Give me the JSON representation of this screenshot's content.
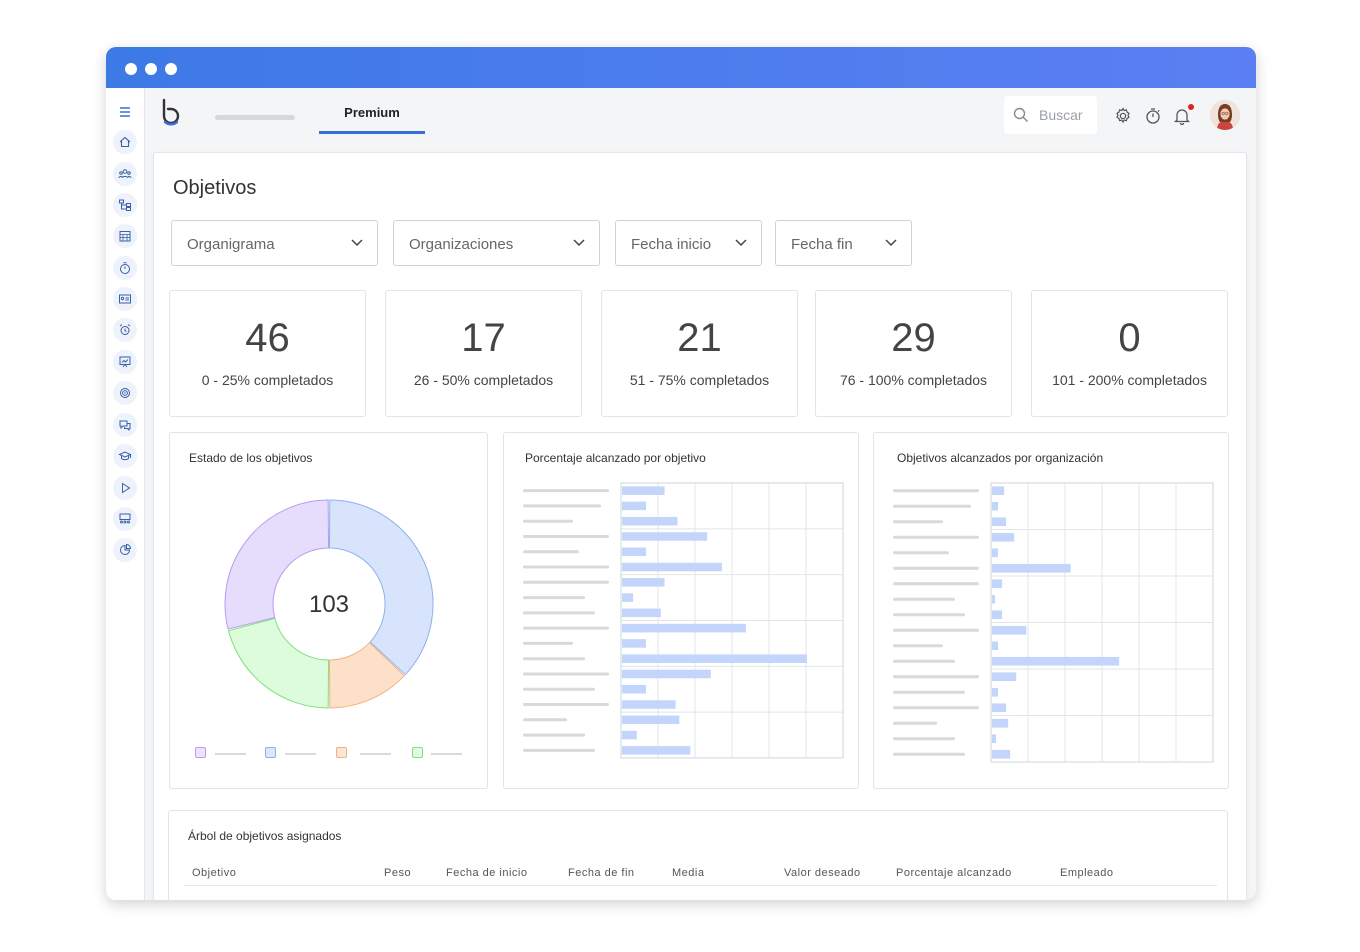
{
  "topbar": {
    "tab_active": "Premium",
    "search_placeholder": "Buscar"
  },
  "page": {
    "title": "Objetivos"
  },
  "filters": [
    {
      "label": "Organigrama"
    },
    {
      "label": "Organizaciones"
    },
    {
      "label": "Fecha inicio"
    },
    {
      "label": "Fecha fin"
    }
  ],
  "stats": [
    {
      "value": "46",
      "label": "0 - 25% completados"
    },
    {
      "value": "17",
      "label": "26 - 50% completados"
    },
    {
      "value": "21",
      "label": "51 - 75% completados"
    },
    {
      "value": "29",
      "label": "76 - 100% completados"
    },
    {
      "value": "0",
      "label": "101 - 200% completados"
    }
  ],
  "cards": {
    "status_title": "Estado de los objetivos",
    "status_total": "103",
    "percent_title": "Porcentaje alcanzado por objetivo",
    "org_title": "Objetivos alcanzados por organización"
  },
  "colors": {
    "accent": "#3b6fd8",
    "bar_fill": "#c4d5fb",
    "donut_purple": "#e6dcfc",
    "donut_blue": "#d8e4fc",
    "donut_orange": "#fde0c8",
    "donut_green": "#dcfcdc"
  },
  "chart_data": [
    {
      "type": "pie",
      "title": "Estado de los objetivos",
      "center_label": "103",
      "slices": [
        {
          "color": "#d8e4fc",
          "value": 37
        },
        {
          "color": "#fde0c8",
          "value": 13
        },
        {
          "color": "#dcfcdc",
          "value": 21
        },
        {
          "color": "#e6dcfc",
          "value": 29
        }
      ]
    },
    {
      "type": "bar",
      "orientation": "horizontal",
      "title": "Porcentaje alcanzado por objetivo",
      "values": [
        23,
        13,
        30,
        46,
        13,
        54,
        23,
        6,
        21,
        67,
        13,
        100,
        48,
        13,
        29,
        31,
        8,
        37
      ],
      "xlim": [
        0,
        120
      ],
      "grid": true
    },
    {
      "type": "bar",
      "orientation": "horizontal",
      "title": "Objetivos alcanzados por organización",
      "values": [
        6,
        3,
        7,
        11,
        3,
        39,
        5,
        1,
        5,
        17,
        3,
        63,
        12,
        3,
        7,
        8,
        2,
        9
      ],
      "xlim": [
        0,
        110
      ],
      "grid": true
    }
  ],
  "tree": {
    "title": "Árbol de objetivos asignados",
    "columns": [
      "Objetivo",
      "Peso",
      "Fecha de inicio",
      "Fecha de fin",
      "Media",
      "Valor deseado",
      "Porcentaje alcanzado",
      "Empleado"
    ]
  }
}
